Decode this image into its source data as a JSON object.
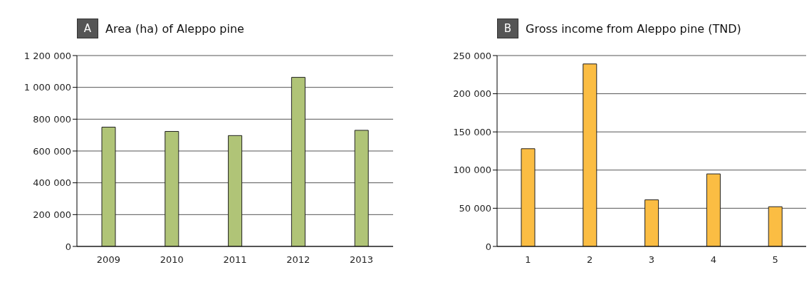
{
  "chart_data": [
    {
      "type": "bar",
      "title": "Area (ha) of Aleppo pine",
      "annotations": [
        "A"
      ],
      "categories": [
        "2009",
        "2010",
        "2011",
        "2012",
        "2013"
      ],
      "values": [
        750000,
        723000,
        697000,
        1063000,
        730000
      ],
      "color": "#b0c477",
      "ylim": [
        0,
        1200000
      ],
      "yticks": [
        0,
        {
          "value": 200000,
          "label": "200 000"
        },
        {
          "value": 400000,
          "label": "400 000"
        },
        {
          "value": 600000,
          "label": "600 000"
        },
        {
          "value": 800000,
          "label": "800 000"
        },
        {
          "value": 1000000,
          "label": "1 000 000"
        },
        {
          "value": 1200000,
          "label": "1 200 000"
        }
      ],
      "grid": "y"
    },
    {
      "type": "bar",
      "title": "Gross income from Aleppo pine (TND)",
      "annotations": [
        "B"
      ],
      "categories": [
        "1",
        "2",
        "3",
        "4",
        "5"
      ],
      "values": [
        128000,
        239000,
        61000,
        95000,
        52000
      ],
      "color": "#fbbd43",
      "ylim": [
        0,
        250000
      ],
      "yticks": [
        0,
        {
          "value": 50000,
          "label": "50 000"
        },
        {
          "value": 100000,
          "label": "100 000"
        },
        {
          "value": 150000,
          "label": "150 000"
        },
        {
          "value": 200000,
          "label": "200 000"
        },
        {
          "value": 250000,
          "label": "250 000"
        }
      ],
      "grid": "y"
    }
  ]
}
